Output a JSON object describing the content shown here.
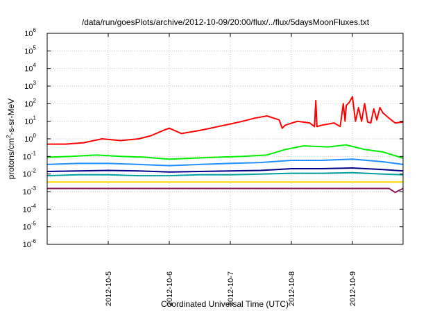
{
  "chart_data": {
    "type": "line",
    "title": "/data/run/goesPlots/archive/2012-10-09/20:00/flux/../flux/5daysMoonFluxes.txt",
    "xlabel": "Coordinated Universal Time (UTC)",
    "ylabel": {
      "prefix": "protons/cm",
      "sup": "2",
      "suffix": "-s-sr-MeV"
    },
    "yscale": "log",
    "ylim": [
      1e-06,
      1000000.0
    ],
    "xlim": [
      0,
      5.83
    ],
    "grid": true,
    "x_ticks": [
      {
        "value": 1,
        "label": "2012-10-5"
      },
      {
        "value": 2,
        "label": "2012-10-6"
      },
      {
        "value": 3,
        "label": "2012-10-7"
      },
      {
        "value": 4,
        "label": "2012-10-8"
      },
      {
        "value": 5,
        "label": "2012-10-9"
      }
    ],
    "y_ticks": [
      {
        "exp": -6,
        "label": "10",
        "sup": "-6"
      },
      {
        "exp": -5,
        "label": "10",
        "sup": "-5"
      },
      {
        "exp": -4,
        "label": "10",
        "sup": "-4"
      },
      {
        "exp": -3,
        "label": "10",
        "sup": "-3"
      },
      {
        "exp": -2,
        "label": "10",
        "sup": "-2"
      },
      {
        "exp": -1,
        "label": "10",
        "sup": "-1"
      },
      {
        "exp": 0,
        "label": "10",
        "sup": "0"
      },
      {
        "exp": 1,
        "label": "10",
        "sup": "1"
      },
      {
        "exp": 2,
        "label": "10",
        "sup": "2"
      },
      {
        "exp": 3,
        "label": "10",
        "sup": "3"
      },
      {
        "exp": 4,
        "label": "10",
        "sup": "4"
      },
      {
        "exp": 5,
        "label": "10",
        "sup": "5"
      },
      {
        "exp": 6,
        "label": "10",
        "sup": "6"
      }
    ],
    "series": [
      {
        "color": "#ff0000",
        "x": [
          0,
          0.3,
          0.6,
          0.9,
          1.2,
          1.5,
          1.7,
          1.9,
          2.0,
          2.2,
          2.5,
          2.8,
          3.0,
          3.2,
          3.4,
          3.6,
          3.8,
          3.85,
          3.9,
          4.1,
          4.3,
          4.38,
          4.4,
          4.42,
          4.5,
          4.7,
          4.8,
          4.85,
          4.88,
          4.9,
          4.95,
          5.0,
          5.05,
          5.1,
          5.15,
          5.2,
          5.25,
          5.3,
          5.35,
          5.4,
          5.45,
          5.5,
          5.6,
          5.7,
          5.83
        ],
        "values": [
          0.5,
          0.5,
          0.6,
          1.0,
          0.8,
          1.0,
          1.5,
          3.0,
          4.0,
          2.0,
          3.0,
          5.0,
          7.0,
          10.0,
          15.0,
          20.0,
          12.0,
          4.0,
          6.0,
          10.0,
          8.0,
          5.0,
          150.0,
          5.0,
          6.0,
          8.0,
          5.0,
          100.0,
          10.0,
          80.0,
          120.0,
          250.0,
          10.0,
          60.0,
          10.0,
          100.0,
          9.0,
          8.0,
          50.0,
          12.0,
          60.0,
          30.0,
          15.0,
          8.0,
          9.0
        ]
      },
      {
        "color": "#00ee00",
        "x": [
          0,
          0.4,
          0.8,
          1.2,
          1.6,
          2.0,
          2.4,
          2.8,
          3.2,
          3.6,
          3.9,
          4.2,
          4.6,
          4.9,
          5.2,
          5.5,
          5.83
        ],
        "values": [
          0.09,
          0.1,
          0.12,
          0.1,
          0.09,
          0.07,
          0.08,
          0.09,
          0.1,
          0.12,
          0.25,
          0.4,
          0.35,
          0.45,
          0.25,
          0.18,
          0.08
        ]
      },
      {
        "color": "#1e90ff",
        "x": [
          0,
          0.5,
          1.0,
          1.5,
          2.0,
          2.5,
          3.0,
          3.5,
          4.0,
          4.5,
          5.0,
          5.5,
          5.83
        ],
        "values": [
          0.035,
          0.04,
          0.04,
          0.035,
          0.03,
          0.035,
          0.04,
          0.045,
          0.06,
          0.06,
          0.07,
          0.05,
          0.035
        ]
      },
      {
        "color": "#00008b",
        "x": [
          0,
          0.5,
          1.0,
          1.5,
          2.0,
          2.5,
          3.0,
          3.5,
          4.0,
          4.5,
          5.0,
          5.5,
          5.83
        ],
        "values": [
          0.014,
          0.015,
          0.016,
          0.015,
          0.013,
          0.014,
          0.015,
          0.016,
          0.02,
          0.02,
          0.022,
          0.018,
          0.015
        ]
      },
      {
        "color": "#00a0a0",
        "x": [
          0,
          0.5,
          1.0,
          1.5,
          2.0,
          2.5,
          3.0,
          3.5,
          4.0,
          4.5,
          5.0,
          5.5,
          5.83
        ],
        "values": [
          0.008,
          0.009,
          0.009,
          0.008,
          0.008,
          0.009,
          0.009,
          0.01,
          0.011,
          0.011,
          0.012,
          0.01,
          0.009
        ]
      },
      {
        "color": "#ffd700",
        "x": [
          0,
          1.0,
          2.0,
          3.0,
          4.0,
          5.0,
          5.83
        ],
        "values": [
          0.0035,
          0.0035,
          0.0035,
          0.0035,
          0.0035,
          0.0035,
          0.0035
        ]
      },
      {
        "color": "#8b1a5a",
        "x": [
          0,
          1.0,
          2.0,
          3.0,
          4.0,
          5.0,
          5.6,
          5.7,
          5.83
        ],
        "values": [
          0.0015,
          0.0015,
          0.0015,
          0.0015,
          0.0015,
          0.0015,
          0.0015,
          0.0009,
          0.0015
        ]
      }
    ]
  }
}
